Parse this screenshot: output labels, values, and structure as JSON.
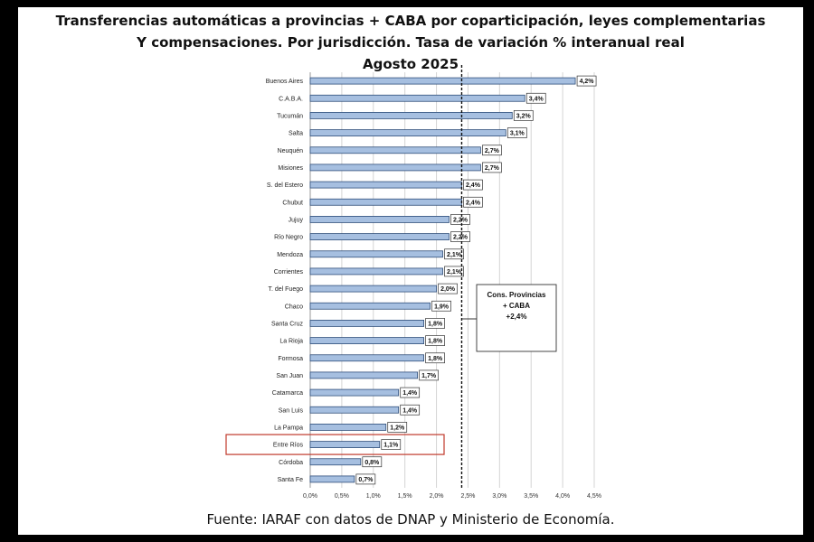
{
  "title": {
    "line1": "Transferencias automáticas a provincias + CABA por coparticipación, leyes complementarias",
    "line2": "Y compensaciones. Por jurisdicción. Tasa de variación % interanual real",
    "line3": "Agosto 2025"
  },
  "source": "Fuente: IARAF con datos de DNAP y Ministerio de Economía.",
  "chart_data": {
    "type": "bar",
    "orientation": "horizontal",
    "categories": [
      "Buenos Aires",
      "C.A.B.A.",
      "Tucumán",
      "Salta",
      "Neuquén",
      "Misiones",
      "S. del Estero",
      "Chubut",
      "Jujuy",
      "Río Negro",
      "Mendoza",
      "Corrientes",
      "T. del Fuego",
      "Chaco",
      "Santa Cruz",
      "La Rioja",
      "Formosa",
      "San Juan",
      "Catamarca",
      "San Luis",
      "La Pampa",
      "Entre Ríos",
      "Córdoba",
      "Santa Fe"
    ],
    "values": [
      4.2,
      3.4,
      3.2,
      3.1,
      2.7,
      2.7,
      2.4,
      2.4,
      2.2,
      2.2,
      2.1,
      2.1,
      2.0,
      1.9,
      1.8,
      1.8,
      1.8,
      1.7,
      1.4,
      1.4,
      1.2,
      1.1,
      0.8,
      0.7
    ],
    "data_labels": [
      "4,2%",
      "3,4%",
      "3,2%",
      "3,1%",
      "2,7%",
      "2,7%",
      "2,4%",
      "2,4%",
      "2,2%",
      "2,2%",
      "2,1%",
      "2,1%",
      "2,0%",
      "1,9%",
      "1,8%",
      "1,8%",
      "1,8%",
      "1,7%",
      "1,4%",
      "1,4%",
      "1,2%",
      "1,1%",
      "0,8%",
      "0,7%"
    ],
    "xlim": [
      0,
      4.5
    ],
    "xticks": [
      0,
      0.5,
      1,
      1.5,
      2,
      2.5,
      3,
      3.5,
      4,
      4.5
    ],
    "xtick_labels": [
      "0,0%",
      "0,5%",
      "1,0%",
      "1,5%",
      "2,0%",
      "2,5%",
      "3,0%",
      "3,5%",
      "4,0%",
      "4,5%"
    ],
    "grid": "vertical",
    "reference_line": {
      "value": 2.4,
      "label_lines": [
        "Cons. Provincias",
        "+ CABA",
        "+2,4%"
      ]
    },
    "highlighted_category": "Entre Ríos",
    "colors": {
      "bar": "#a6bfe0",
      "bar_edge": "#2f4e7a",
      "grid": "#d4d4d4",
      "highlight": "#c0392b"
    }
  }
}
